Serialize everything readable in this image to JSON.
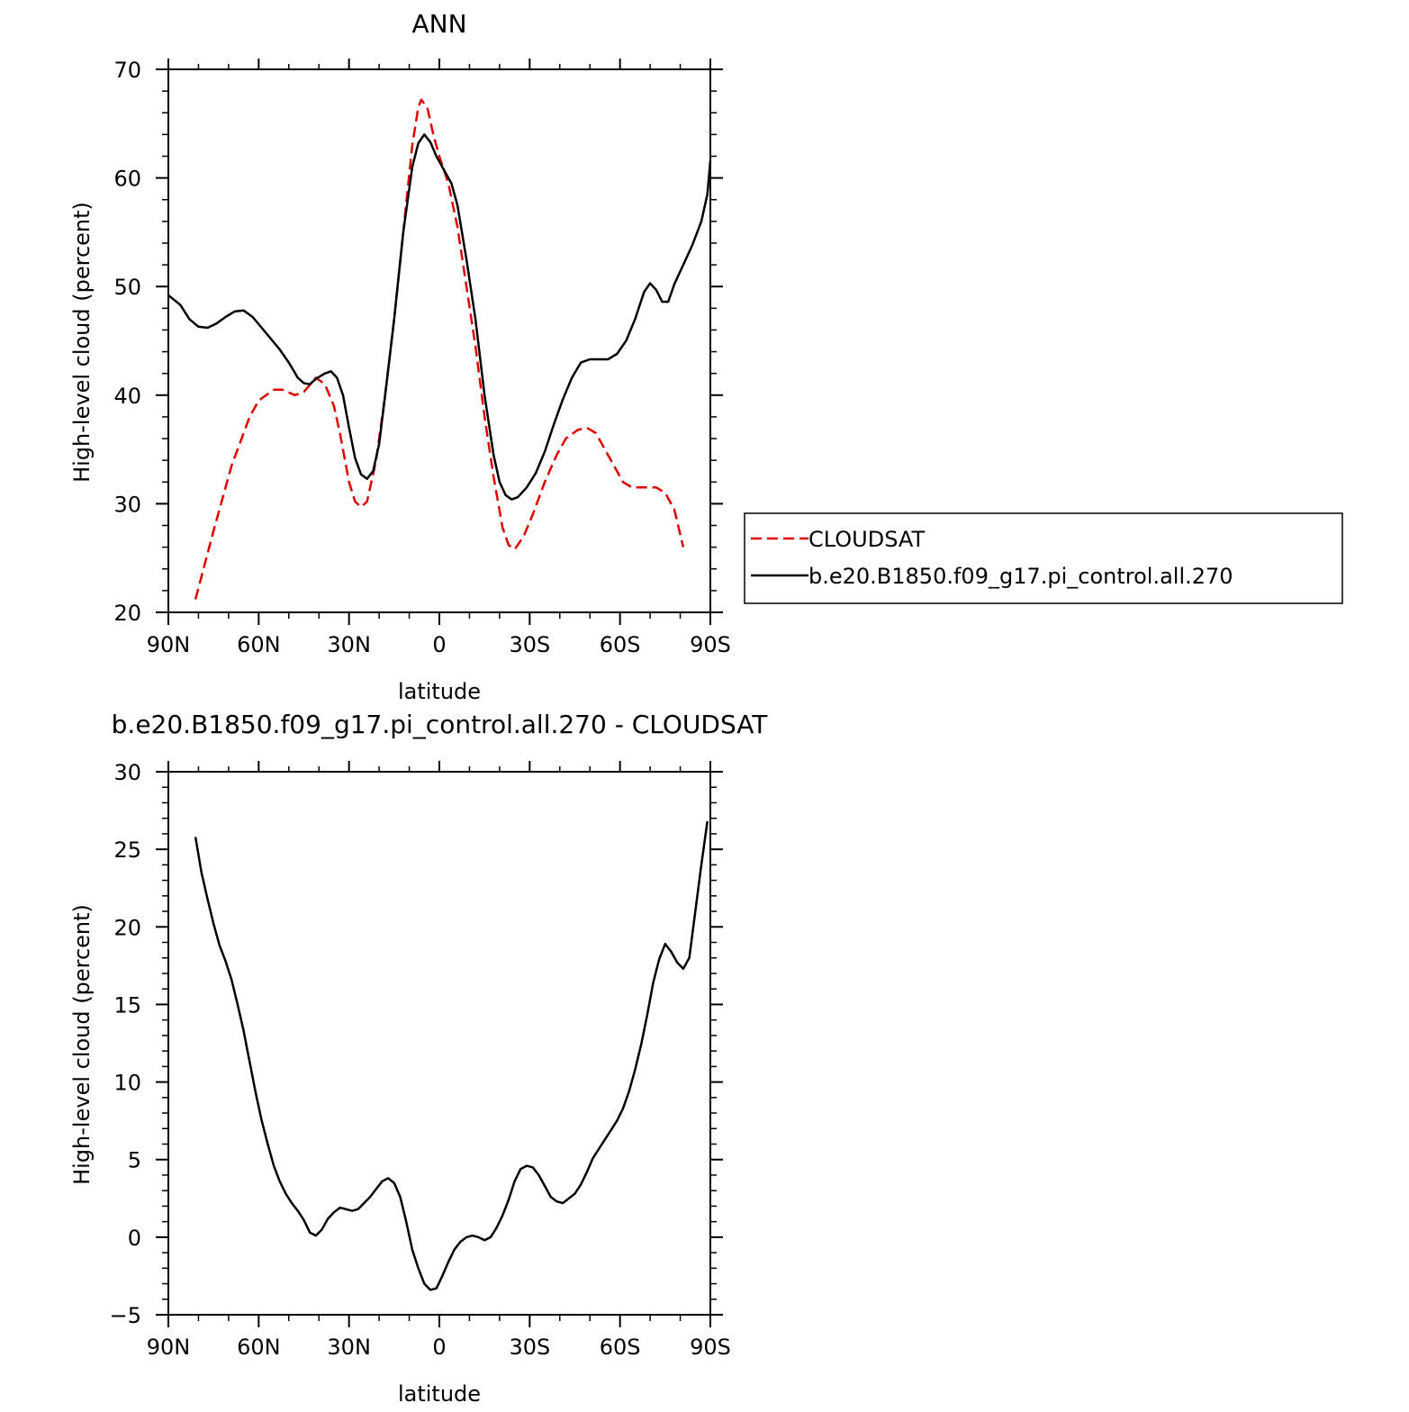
{
  "chart_data": [
    {
      "type": "line",
      "title": "ANN",
      "xlabel": "latitude",
      "ylabel": "High-level cloud (percent)",
      "xlim": [
        90,
        -90
      ],
      "ylim": [
        20,
        70
      ],
      "x_ticks": [
        90,
        60,
        30,
        0,
        -30,
        -60,
        -90
      ],
      "x_tick_labels": [
        "90N",
        "60N",
        "30N",
        "0",
        "30S",
        "60S",
        "90S"
      ],
      "y_ticks": [
        20,
        30,
        40,
        50,
        60,
        70
      ],
      "y_tick_labels": [
        "20",
        "30",
        "40",
        "50",
        "60",
        "70"
      ],
      "legend_position": "right",
      "series": [
        {
          "name": "CLOUDSAT",
          "color": "#e00000",
          "dash": "dashed",
          "points": [
            [
              81,
              21.2
            ],
            [
              75,
              27.5
            ],
            [
              69,
              33.5
            ],
            [
              63,
              38.0
            ],
            [
              60,
              39.5
            ],
            [
              55,
              40.5
            ],
            [
              52,
              40.5
            ],
            [
              48,
              40.0
            ],
            [
              45,
              40.3
            ],
            [
              41,
              41.6
            ],
            [
              38,
              41.0
            ],
            [
              35,
              39.0
            ],
            [
              33,
              36.5
            ],
            [
              30,
              32.0
            ],
            [
              28,
              30.2
            ],
            [
              26,
              29.7
            ],
            [
              24,
              30.2
            ],
            [
              21,
              34.0
            ],
            [
              18,
              40.0
            ],
            [
              15,
              47.0
            ],
            [
              12,
              55.0
            ],
            [
              9,
              63.0
            ],
            [
              7,
              66.5
            ],
            [
              6,
              67.2
            ],
            [
              4,
              66.5
            ],
            [
              2,
              64.0
            ],
            [
              0,
              62.0
            ],
            [
              -3,
              59.5
            ],
            [
              -6,
              55.5
            ],
            [
              -9,
              50.0
            ],
            [
              -12,
              44.5
            ],
            [
              -15,
              38.0
            ],
            [
              -18,
              32.5
            ],
            [
              -21,
              27.8
            ],
            [
              -23,
              26.2
            ],
            [
              -25,
              25.8
            ],
            [
              -28,
              27.0
            ],
            [
              -31,
              29.0
            ],
            [
              -35,
              32.0
            ],
            [
              -39,
              34.5
            ],
            [
              -42,
              36.0
            ],
            [
              -46,
              36.8
            ],
            [
              -49,
              37.0
            ],
            [
              -52,
              36.5
            ],
            [
              -55,
              35.0
            ],
            [
              -58,
              33.5
            ],
            [
              -61,
              32.0
            ],
            [
              -64,
              31.5
            ],
            [
              -68,
              31.5
            ],
            [
              -72,
              31.5
            ],
            [
              -75,
              31.0
            ],
            [
              -78,
              29.5
            ],
            [
              -81,
              26.0
            ]
          ]
        },
        {
          "name": "b.e20.B1850.f09_g17.pi_control.all.270",
          "color": "#000000",
          "dash": "solid",
          "points": [
            [
              90,
              49.2
            ],
            [
              86,
              48.3
            ],
            [
              83,
              47.0
            ],
            [
              80,
              46.3
            ],
            [
              77,
              46.2
            ],
            [
              74,
              46.6
            ],
            [
              71,
              47.2
            ],
            [
              68,
              47.7
            ],
            [
              65,
              47.8
            ],
            [
              62,
              47.2
            ],
            [
              59,
              46.2
            ],
            [
              56,
              45.2
            ],
            [
              53,
              44.2
            ],
            [
              50,
              43.0
            ],
            [
              47,
              41.6
            ],
            [
              45,
              41.1
            ],
            [
              43,
              41.0
            ],
            [
              41,
              41.5
            ],
            [
              38,
              42.0
            ],
            [
              36,
              42.2
            ],
            [
              34,
              41.6
            ],
            [
              32,
              40.0
            ],
            [
              30,
              37.0
            ],
            [
              28,
              34.2
            ],
            [
              26,
              32.7
            ],
            [
              24,
              32.3
            ],
            [
              22,
              33.0
            ],
            [
              20,
              35.5
            ],
            [
              18,
              40.0
            ],
            [
              15,
              47.0
            ],
            [
              12,
              55.0
            ],
            [
              9,
              61.0
            ],
            [
              7,
              63.2
            ],
            [
              5,
              64.0
            ],
            [
              3,
              63.3
            ],
            [
              1,
              62.0
            ],
            [
              -2,
              60.5
            ],
            [
              -4,
              59.5
            ],
            [
              -6,
              57.5
            ],
            [
              -9,
              52.5
            ],
            [
              -12,
              47.0
            ],
            [
              -15,
              40.0
            ],
            [
              -18,
              34.5
            ],
            [
              -20,
              32.0
            ],
            [
              -22,
              30.8
            ],
            [
              -24,
              30.4
            ],
            [
              -26,
              30.6
            ],
            [
              -29,
              31.5
            ],
            [
              -32,
              32.8
            ],
            [
              -35,
              34.8
            ],
            [
              -38,
              37.3
            ],
            [
              -41,
              39.6
            ],
            [
              -44,
              41.6
            ],
            [
              -47,
              43.0
            ],
            [
              -50,
              43.3
            ],
            [
              -53,
              43.3
            ],
            [
              -56,
              43.3
            ],
            [
              -59,
              43.8
            ],
            [
              -62,
              45.0
            ],
            [
              -65,
              47.0
            ],
            [
              -68,
              49.5
            ],
            [
              -70,
              50.3
            ],
            [
              -72,
              49.7
            ],
            [
              -74,
              48.6
            ],
            [
              -76,
              48.6
            ],
            [
              -78,
              50.2
            ],
            [
              -81,
              52.0
            ],
            [
              -84,
              53.8
            ],
            [
              -87,
              56.0
            ],
            [
              -89,
              58.5
            ],
            [
              -90,
              61.6
            ]
          ]
        }
      ]
    },
    {
      "type": "line",
      "title": "b.e20.B1850.f09_g17.pi_control.all.270 - CLOUDSAT",
      "xlabel": "latitude",
      "ylabel": "High-level cloud (percent)",
      "xlim": [
        90,
        -90
      ],
      "ylim": [
        -5,
        30
      ],
      "x_ticks": [
        90,
        60,
        30,
        0,
        -30,
        -60,
        -90
      ],
      "x_tick_labels": [
        "90N",
        "60N",
        "30N",
        "0",
        "30S",
        "60S",
        "90S"
      ],
      "y_ticks": [
        -5,
        0,
        5,
        10,
        15,
        20,
        25,
        30
      ],
      "y_tick_labels": [
        "−5",
        "0",
        "5",
        "10",
        "15",
        "20",
        "25",
        "30"
      ],
      "series": [
        {
          "color": "#000000",
          "dash": "solid",
          "points": [
            [
              81,
              25.8
            ],
            [
              79,
              23.5
            ],
            [
              77,
              21.8
            ],
            [
              75,
              20.2
            ],
            [
              73,
              18.8
            ],
            [
              71,
              17.8
            ],
            [
              69,
              16.6
            ],
            [
              67,
              15.0
            ],
            [
              65,
              13.3
            ],
            [
              63,
              11.3
            ],
            [
              61,
              9.3
            ],
            [
              59,
              7.5
            ],
            [
              57,
              6.0
            ],
            [
              55,
              4.6
            ],
            [
              53,
              3.6
            ],
            [
              51,
              2.8
            ],
            [
              49,
              2.2
            ],
            [
              47,
              1.7
            ],
            [
              45,
              1.1
            ],
            [
              43,
              0.3
            ],
            [
              41,
              0.1
            ],
            [
              39,
              0.5
            ],
            [
              37,
              1.2
            ],
            [
              35,
              1.6
            ],
            [
              33,
              1.9
            ],
            [
              31,
              1.8
            ],
            [
              29,
              1.7
            ],
            [
              27,
              1.8
            ],
            [
              25,
              2.2
            ],
            [
              23,
              2.6
            ],
            [
              21,
              3.1
            ],
            [
              19,
              3.6
            ],
            [
              17,
              3.8
            ],
            [
              15,
              3.5
            ],
            [
              13,
              2.6
            ],
            [
              11,
              1.0
            ],
            [
              9,
              -0.8
            ],
            [
              7,
              -2.0
            ],
            [
              5,
              -3.0
            ],
            [
              3,
              -3.4
            ],
            [
              1,
              -3.3
            ],
            [
              -1,
              -2.5
            ],
            [
              -3,
              -1.6
            ],
            [
              -5,
              -0.8
            ],
            [
              -7,
              -0.3
            ],
            [
              -9,
              0.0
            ],
            [
              -11,
              0.1
            ],
            [
              -13,
              0.0
            ],
            [
              -15,
              -0.2
            ],
            [
              -17,
              0.0
            ],
            [
              -19,
              0.6
            ],
            [
              -21,
              1.4
            ],
            [
              -23,
              2.4
            ],
            [
              -25,
              3.6
            ],
            [
              -27,
              4.4
            ],
            [
              -29,
              4.6
            ],
            [
              -31,
              4.5
            ],
            [
              -33,
              4.0
            ],
            [
              -35,
              3.3
            ],
            [
              -37,
              2.6
            ],
            [
              -39,
              2.3
            ],
            [
              -41,
              2.2
            ],
            [
              -43,
              2.5
            ],
            [
              -45,
              2.8
            ],
            [
              -47,
              3.4
            ],
            [
              -49,
              4.2
            ],
            [
              -51,
              5.1
            ],
            [
              -53,
              5.7
            ],
            [
              -55,
              6.3
            ],
            [
              -57,
              6.9
            ],
            [
              -59,
              7.5
            ],
            [
              -61,
              8.3
            ],
            [
              -63,
              9.4
            ],
            [
              -65,
              10.8
            ],
            [
              -67,
              12.4
            ],
            [
              -69,
              14.3
            ],
            [
              -71,
              16.4
            ],
            [
              -73,
              17.9
            ],
            [
              -75,
              18.9
            ],
            [
              -77,
              18.4
            ],
            [
              -79,
              17.7
            ],
            [
              -81,
              17.3
            ],
            [
              -83,
              18.0
            ],
            [
              -85,
              21.0
            ],
            [
              -87,
              24.0
            ],
            [
              -89,
              26.8
            ]
          ]
        }
      ]
    }
  ]
}
